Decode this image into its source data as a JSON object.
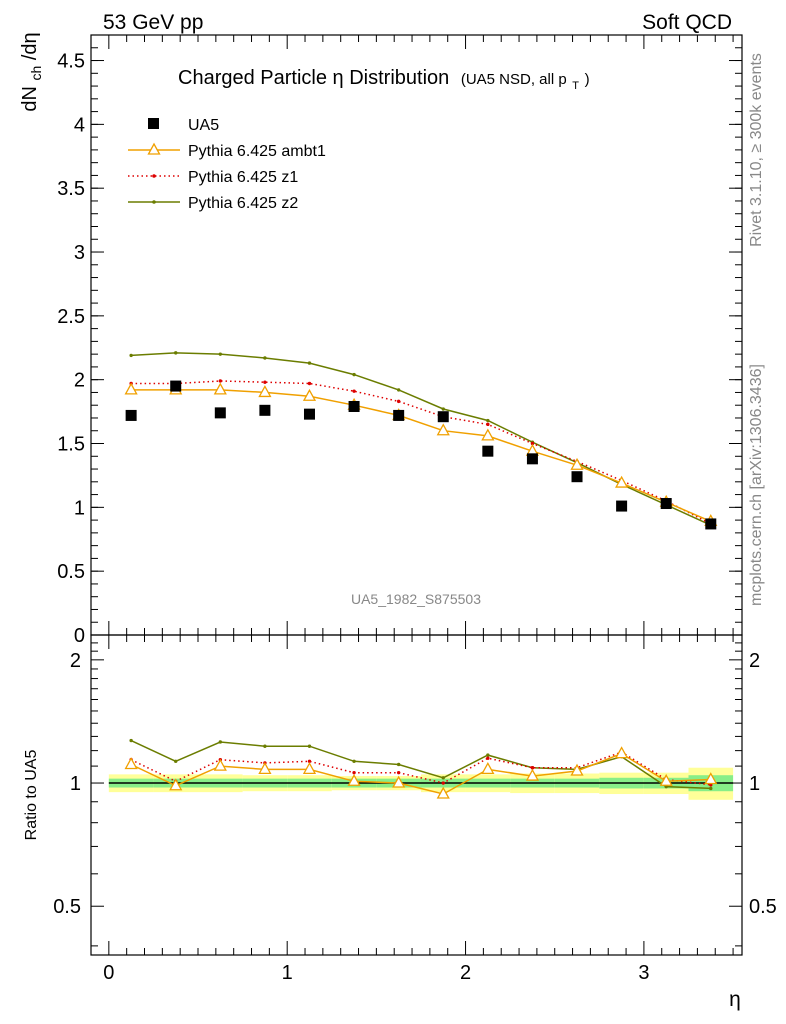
{
  "header": {
    "left": "53 GeV pp",
    "right": "Soft QCD"
  },
  "side_text": {
    "rivet": "Rivet 3.1.10, ≥ 300k events",
    "mcplots": "mcplots.cern.ch [arXiv:1306.3436]"
  },
  "watermark": "UA5_1982_S875503",
  "chart_data": [
    {
      "type": "line",
      "panel": "main",
      "title": "Charged Particle η Distribution",
      "subtitle": "(UA5 NSD, all p_T)",
      "title_main": "Charged Particle",
      "title_eta": "η",
      "title_tail": " Distribution",
      "subtitle_main": "(UA5 NSD, all p",
      "subtitle_sub": "T",
      "subtitle_close": ")",
      "ylabel": "dN_ch/dη",
      "ylabel_main": "dN",
      "ylabel_sub": "ch",
      "ylabel_tail": "/dη",
      "xlabel": "",
      "xlim": [
        -0.1,
        3.55
      ],
      "ylim": [
        0,
        4.7
      ],
      "yticks": [
        0,
        0.5,
        1,
        1.5,
        2,
        2.5,
        3,
        3.5,
        4,
        4.5
      ],
      "ytick_labels": [
        "0",
        "0.5",
        "1",
        "1.5",
        "2",
        "2.5",
        "3",
        "3.5",
        "4",
        "4.5"
      ],
      "x": [
        0.125,
        0.375,
        0.625,
        0.875,
        1.125,
        1.375,
        1.625,
        1.875,
        2.125,
        2.375,
        2.625,
        2.875,
        3.125,
        3.375
      ],
      "series": [
        {
          "name": "UA5",
          "style": "data",
          "color": "#000000",
          "values": [
            1.72,
            1.95,
            1.74,
            1.76,
            1.73,
            1.79,
            1.72,
            1.71,
            1.44,
            1.38,
            1.24,
            1.01,
            1.03,
            0.87
          ]
        },
        {
          "name": "Pythia 6.425 ambt1",
          "style": "triangle",
          "color": "#f0a000",
          "values": [
            1.92,
            1.92,
            1.92,
            1.9,
            1.87,
            1.8,
            1.72,
            1.6,
            1.56,
            1.44,
            1.33,
            1.19,
            1.04,
            0.89
          ]
        },
        {
          "name": "Pythia 6.425 z1",
          "style": "dotted",
          "color": "#dd0000",
          "values": [
            1.97,
            1.97,
            1.99,
            1.98,
            1.97,
            1.91,
            1.83,
            1.71,
            1.65,
            1.5,
            1.36,
            1.21,
            1.05,
            0.87
          ]
        },
        {
          "name": "Pythia 6.425 z2",
          "style": "solid",
          "color": "#6b7d00",
          "values": [
            2.19,
            2.21,
            2.2,
            2.17,
            2.13,
            2.04,
            1.92,
            1.77,
            1.68,
            1.51,
            1.35,
            1.18,
            1.02,
            0.86
          ]
        }
      ]
    },
    {
      "type": "line",
      "panel": "ratio",
      "ylabel": "Ratio to UA5",
      "xlabel": "η",
      "xlim": [
        -0.1,
        3.55
      ],
      "ylim": [
        0.38,
        2.3
      ],
      "yscale": "log",
      "xticks": [
        0,
        1,
        2,
        3
      ],
      "xtick_labels": [
        "0",
        "1",
        "2",
        "3"
      ],
      "yticks": [
        0.5,
        1,
        2
      ],
      "ytick_labels": [
        "0.5",
        "1",
        "2"
      ],
      "x": [
        0.125,
        0.375,
        0.625,
        0.875,
        1.125,
        1.375,
        1.625,
        1.875,
        2.125,
        2.375,
        2.625,
        2.875,
        3.125,
        3.375
      ],
      "band_edges": [
        0,
        0.25,
        0.5,
        0.75,
        1.0,
        1.25,
        1.5,
        1.75,
        2.0,
        2.25,
        2.5,
        2.75,
        3.0,
        3.25,
        3.5
      ],
      "band_stat": [
        0.025,
        0.025,
        0.025,
        0.025,
        0.025,
        0.025,
        0.025,
        0.025,
        0.025,
        0.025,
        0.025,
        0.03,
        0.03,
        0.045
      ],
      "band_total": [
        0.05,
        0.05,
        0.05,
        0.045,
        0.045,
        0.04,
        0.04,
        0.05,
        0.05,
        0.055,
        0.055,
        0.06,
        0.06,
        0.09
      ],
      "series": [
        {
          "name": "Pythia 6.425 ambt1",
          "style": "triangle",
          "color": "#f0a000",
          "values": [
            1.11,
            0.985,
            1.1,
            1.08,
            1.08,
            1.01,
            1.0,
            0.94,
            1.08,
            1.04,
            1.07,
            1.18,
            1.01,
            1.02
          ]
        },
        {
          "name": "Pythia 6.425 z1",
          "style": "dotted",
          "color": "#dd0000",
          "values": [
            1.14,
            1.01,
            1.14,
            1.12,
            1.13,
            1.06,
            1.06,
            1.0,
            1.15,
            1.09,
            1.09,
            1.19,
            1.02,
            0.99
          ]
        },
        {
          "name": "Pythia 6.425 z2",
          "style": "solid",
          "color": "#6b7d00",
          "values": [
            1.27,
            1.13,
            1.26,
            1.23,
            1.23,
            1.13,
            1.11,
            1.03,
            1.17,
            1.09,
            1.08,
            1.16,
            0.98,
            0.97
          ]
        }
      ]
    }
  ]
}
